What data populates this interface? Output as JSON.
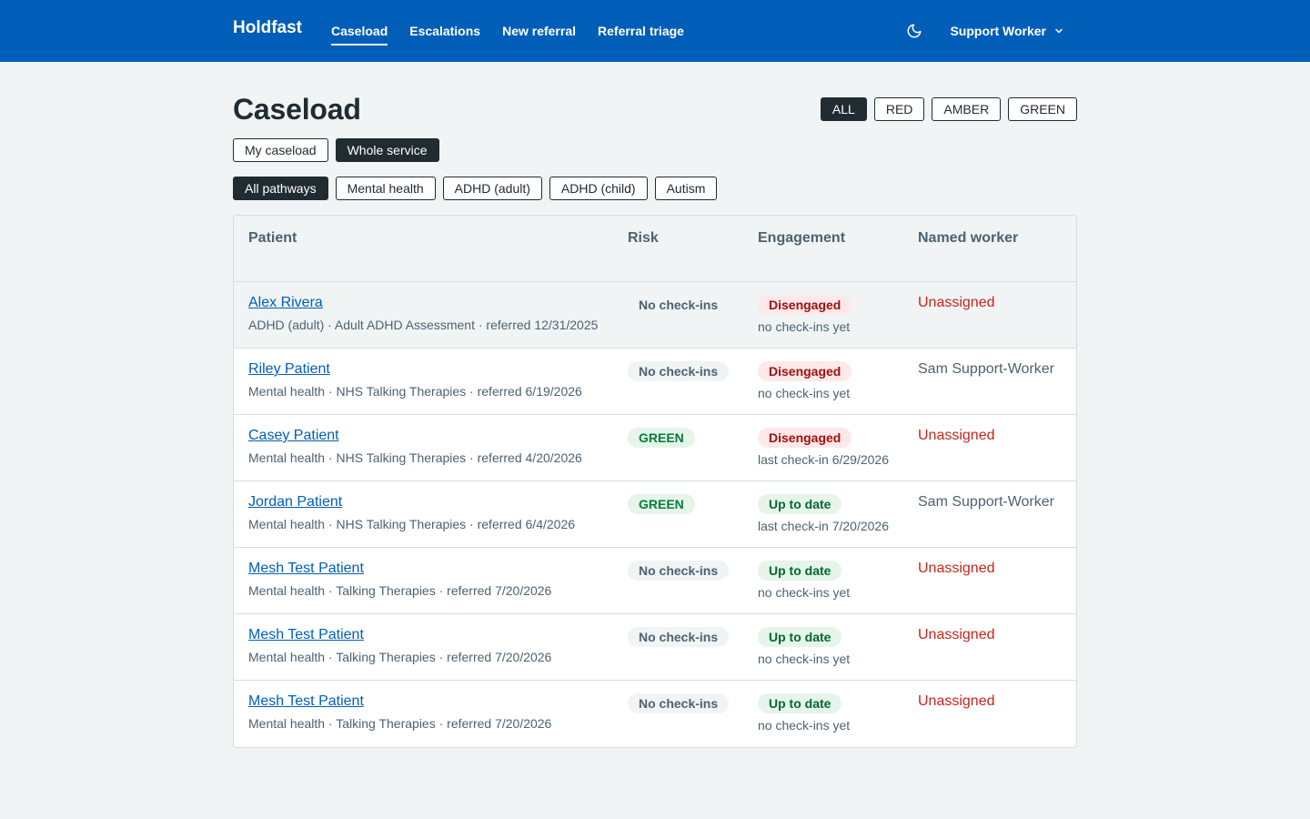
{
  "app": {
    "brand": "Holdfast",
    "nav": [
      {
        "label": "Caseload",
        "active": true
      },
      {
        "label": "Escalations",
        "active": false
      },
      {
        "label": "New referral",
        "active": false
      },
      {
        "label": "Referral triage",
        "active": false
      }
    ],
    "theme_icon": "moon-icon",
    "user_label": "Support Worker",
    "colors": {
      "header": "#005eb8",
      "accent": "#005eb8",
      "danger": "#c8241b",
      "success": "#007f3b"
    }
  },
  "page": {
    "title": "Caseload",
    "risk_filters": [
      {
        "label": "ALL",
        "selected": true
      },
      {
        "label": "RED",
        "selected": false
      },
      {
        "label": "AMBER",
        "selected": false
      },
      {
        "label": "GREEN",
        "selected": false
      }
    ],
    "scope_filters": [
      {
        "label": "My caseload",
        "selected": false
      },
      {
        "label": "Whole service",
        "selected": true
      }
    ],
    "pathway_filters": [
      {
        "label": "All pathways",
        "selected": true
      },
      {
        "label": "Mental health",
        "selected": false
      },
      {
        "label": "ADHD (adult)",
        "selected": false
      },
      {
        "label": "ADHD (child)",
        "selected": false
      },
      {
        "label": "Autism",
        "selected": false
      }
    ]
  },
  "table": {
    "headers": {
      "patient": "Patient",
      "risk": "Risk",
      "engagement": "Engagement",
      "worker": "Named worker"
    },
    "rows": [
      {
        "name": "Alex Rivera",
        "meta": "ADHD (adult) · Adult ADHD Assessment · referred 12/31/2025",
        "risk": "No check-ins",
        "risk_type": "none",
        "engagement": "Disengaged",
        "engagement_type": "dis",
        "engagement_sub": "no check-ins yet",
        "worker": "Unassigned",
        "worker_type": "unassigned"
      },
      {
        "name": "Riley Patient",
        "meta": "Mental health · NHS Talking Therapies · referred 6/19/2026",
        "risk": "No check-ins",
        "risk_type": "none",
        "engagement": "Disengaged",
        "engagement_type": "dis",
        "engagement_sub": "no check-ins yet",
        "worker": "Sam Support-Worker",
        "worker_type": "named"
      },
      {
        "name": "Casey Patient",
        "meta": "Mental health · NHS Talking Therapies · referred 4/20/2026",
        "risk": "GREEN",
        "risk_type": "green",
        "engagement": "Disengaged",
        "engagement_type": "dis",
        "engagement_sub": "last check-in 6/29/2026",
        "worker": "Unassigned",
        "worker_type": "unassigned"
      },
      {
        "name": "Jordan Patient",
        "meta": "Mental health · NHS Talking Therapies · referred 6/4/2026",
        "risk": "GREEN",
        "risk_type": "green",
        "engagement": "Up to date",
        "engagement_type": "up",
        "engagement_sub": "last check-in 7/20/2026",
        "worker": "Sam Support-Worker",
        "worker_type": "named"
      },
      {
        "name": "Mesh Test Patient",
        "meta": "Mental health · Talking Therapies · referred 7/20/2026",
        "risk": "No check-ins",
        "risk_type": "none",
        "engagement": "Up to date",
        "engagement_type": "up",
        "engagement_sub": "no check-ins yet",
        "worker": "Unassigned",
        "worker_type": "unassigned"
      },
      {
        "name": "Mesh Test Patient",
        "meta": "Mental health · Talking Therapies · referred 7/20/2026",
        "risk": "No check-ins",
        "risk_type": "none",
        "engagement": "Up to date",
        "engagement_type": "up",
        "engagement_sub": "no check-ins yet",
        "worker": "Unassigned",
        "worker_type": "unassigned"
      },
      {
        "name": "Mesh Test Patient",
        "meta": "Mental health · Talking Therapies · referred 7/20/2026",
        "risk": "No check-ins",
        "risk_type": "none",
        "engagement": "Up to date",
        "engagement_type": "up",
        "engagement_sub": "no check-ins yet",
        "worker": "Unassigned",
        "worker_type": "unassigned"
      }
    ]
  }
}
